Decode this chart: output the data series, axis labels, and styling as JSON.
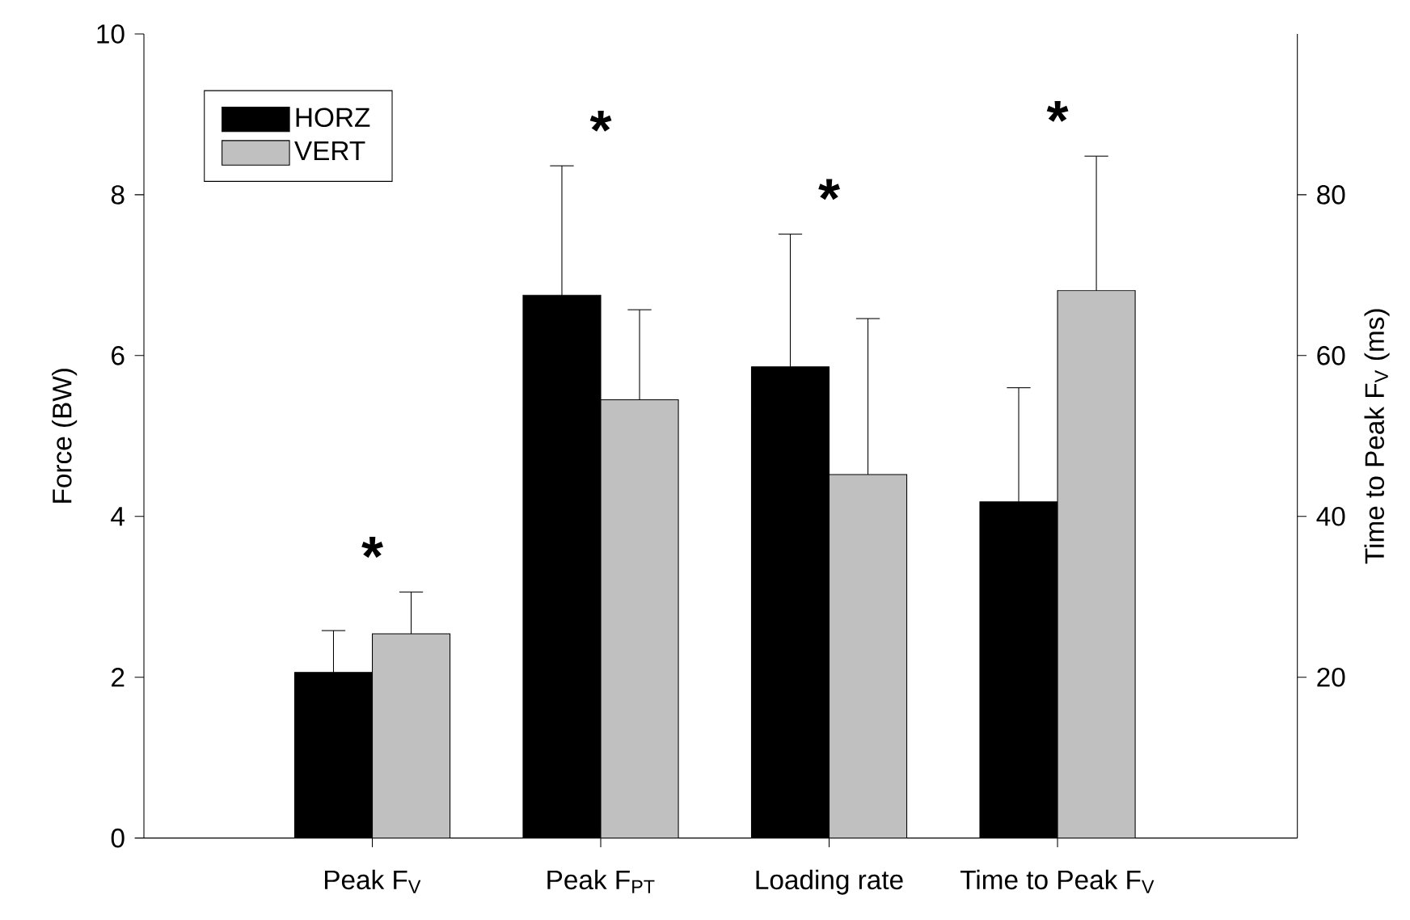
{
  "chart_data": {
    "type": "bar",
    "xlabel": null,
    "ylabel": "Force (BW)",
    "y2label": "Time to Peak F$_{V}$ (ms)",
    "categories": [
      "Peak F$_{V}$",
      "Peak F$_{PT}$",
      "Loading rate",
      "Time to Peak F$_{V}$"
    ],
    "series": [
      {
        "name": "HORZ",
        "color": "#000000",
        "values": [
          2.06,
          6.75,
          5.86,
          null
        ],
        "errors": [
          [
            2.06,
            2.58
          ],
          [
            6.75,
            8.36
          ],
          [
            5.86,
            7.51
          ],
          null
        ]
      },
      {
        "name": "VERT",
        "color": "#c0c0c0",
        "values": [
          2.54,
          5.45,
          4.52,
          null
        ],
        "errors": [
          [
            2.54,
            3.06
          ],
          [
            5.45,
            6.57
          ],
          [
            4.52,
            6.46
          ],
          null
        ]
      },
      {
        "color": "#000000",
        "axis": "y2",
        "values": [
          null,
          null,
          null,
          41.8
        ],
        "errors": [
          null,
          null,
          null,
          [
            41.8,
            56.0
          ]
        ]
      },
      {
        "color": "#c0c0c0",
        "axis": "y2",
        "values": [
          null,
          null,
          null,
          68.1
        ],
        "errors": [
          null,
          null,
          null,
          [
            68.1,
            84.8
          ]
        ]
      }
    ],
    "ylim": [
      0,
      10
    ],
    "yticks": [
      0,
      2,
      4,
      6,
      8,
      10
    ],
    "y2lim": [
      0,
      100
    ],
    "y2ticks": [
      20,
      40,
      60,
      80
    ],
    "legend": "top left",
    "annotations": [
      "*",
      "*",
      "*",
      "*"
    ]
  }
}
